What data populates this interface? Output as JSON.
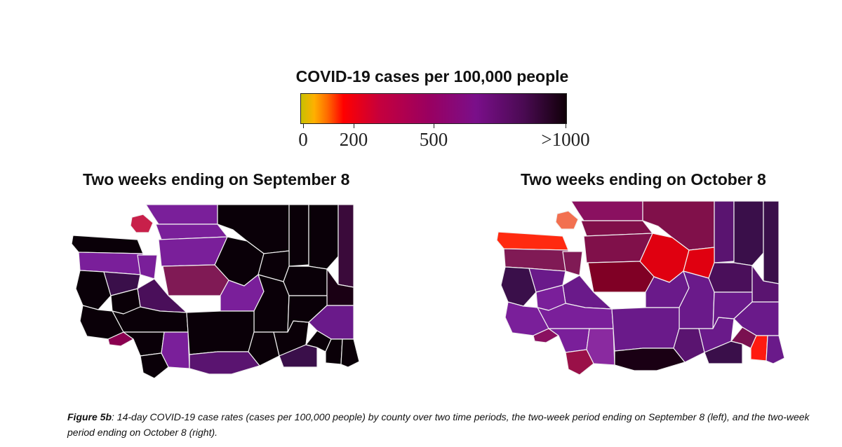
{
  "legend": {
    "title": "COVID-19 cases per 100,000 people",
    "ticks": [
      "0",
      "200",
      "500",
      ">1000"
    ],
    "colors": [
      "#c8c000",
      "#ffb000",
      "#ff6a00",
      "#ff0000",
      "#c4003e",
      "#9a0060",
      "#7a0f8a",
      "#4a0a52",
      "#100008"
    ]
  },
  "maps": [
    {
      "title": "Two weeks ending on September 8",
      "counties": {
        "whatcom": "#7a1f9a",
        "okanogan": "#0a0008",
        "ferry": "#0a0008",
        "stevens": "#0a0008",
        "pend_oreille": "#3a0a3a",
        "skagit": "#7a1f9a",
        "chelan": "#0a0008",
        "douglas": "#0a0008",
        "snohomish": "#7a1f9a",
        "king": "#801a55",
        "kittitas": "#7a1f9a",
        "grant": "#0a0008",
        "lincoln": "#0a0008",
        "spokane": "#1a0014",
        "clallam": "#0a0008",
        "jefferson": "#7a1f9a",
        "grays_harbor": "#0a0008",
        "mason": "#3a0f4a",
        "kitsap": "#7a1f9a",
        "pierce": "#4a0f5a",
        "thurston": "#0a0008",
        "lewis": "#0a0008",
        "pacific": "#0a0008",
        "wahkiakum": "#8a0050",
        "cowlitz": "#0a0008",
        "skamania": "#7a1f9a",
        "clark": "#0a0008",
        "yakima": "#0a0008",
        "klickitat": "#5a1470",
        "benton": "#0a0008",
        "franklin": "#0a0008",
        "adams": "#0a0008",
        "whitman": "#6a1a8a",
        "walla_walla": "#3a0f4a",
        "columbia": "#0a0008",
        "garfield": "#0a0008",
        "asotin": "#0a0008",
        "islands": "#c8204a"
      }
    },
    {
      "title": "Two weeks ending on October 8",
      "counties": {
        "whatcom": "#8a1060",
        "okanogan": "#80104a",
        "ferry": "#5a1470",
        "stevens": "#3a0f4a",
        "pend_oreille": "#3a0f4a",
        "skagit": "#80104a",
        "chelan": "#e00010",
        "douglas": "#e00010",
        "snohomish": "#80104a",
        "king": "#800025",
        "kittitas": "#6a1a8a",
        "grant": "#6a1a8a",
        "lincoln": "#4a0f5a",
        "spokane": "#5a1470",
        "clallam": "#ff2a10",
        "jefferson": "#801a55",
        "grays_harbor": "#3a0f4a",
        "mason": "#6a1a8a",
        "kitsap": "#801a55",
        "pierce": "#6a1a8a",
        "thurston": "#7a1f9a",
        "lewis": "#7a1f9a",
        "pacific": "#7a1f9a",
        "wahkiakum": "#8a1060",
        "cowlitz": "#7a1f9a",
        "skamania": "#8a2aa0",
        "clark": "#9a1048",
        "yakima": "#6a1a8a",
        "klickitat": "#1a0014",
        "benton": "#5a1470",
        "franklin": "#6a1a8a",
        "adams": "#6a1a8a",
        "whitman": "#6a1a8a",
        "walla_walla": "#3a0f4a",
        "columbia": "#7a1050",
        "garfield": "#ff1a10",
        "asotin": "#6a1a8a",
        "islands": "#f27050"
      }
    }
  ],
  "caption": {
    "label": "Figure 5b",
    "text": ": 14-day COVID-19 case rates (cases per 100,000 people) by county over two time periods, the two-week period ending on September 8 (left), and the two-week period ending on October 8 (right)."
  }
}
